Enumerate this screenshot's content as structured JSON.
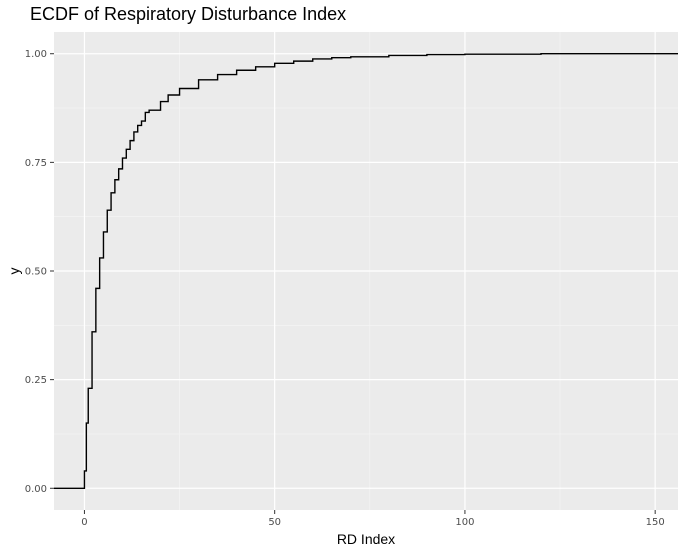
{
  "chart_data": {
    "type": "line",
    "title": "ECDF of Respiratory Disturbance Index",
    "xlabel": "RD Index",
    "ylabel": "y",
    "xlim": [
      -8,
      156
    ],
    "ylim": [
      -0.05,
      1.05
    ],
    "x_ticks": [
      0,
      50,
      100,
      150
    ],
    "x_tick_labels": [
      "0",
      "50",
      "100",
      "150"
    ],
    "y_ticks": [
      0,
      0.25,
      0.5,
      0.75,
      1.0
    ],
    "y_tick_labels": [
      "0.00",
      "0.25",
      "0.50",
      "0.75",
      "1.00"
    ],
    "grid": true,
    "series": [
      {
        "x": [
          -8,
          0,
          0,
          0.5,
          1,
          2,
          3,
          4,
          5,
          6,
          7,
          8,
          9,
          10,
          11,
          12,
          13,
          14,
          15,
          16,
          17,
          20,
          22,
          25,
          30,
          35,
          40,
          45,
          50,
          55,
          60,
          65,
          70,
          80,
          90,
          100,
          120,
          156
        ],
        "y": [
          0,
          0,
          0.04,
          0.15,
          0.23,
          0.36,
          0.46,
          0.53,
          0.59,
          0.64,
          0.68,
          0.71,
          0.735,
          0.76,
          0.78,
          0.8,
          0.82,
          0.835,
          0.845,
          0.865,
          0.87,
          0.89,
          0.905,
          0.92,
          0.94,
          0.952,
          0.962,
          0.97,
          0.978,
          0.983,
          0.988,
          0.991,
          0.993,
          0.996,
          0.998,
          0.999,
          1.0,
          1.0
        ]
      }
    ]
  }
}
